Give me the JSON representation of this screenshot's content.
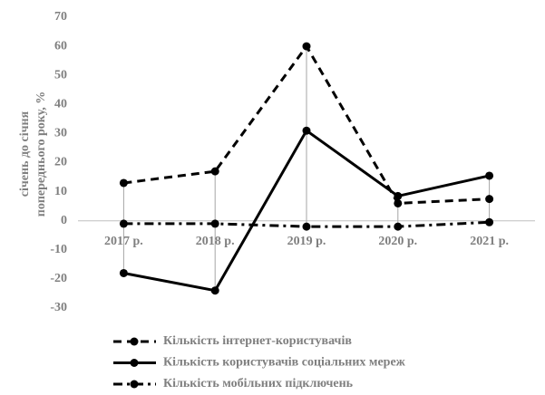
{
  "chart_data": {
    "type": "line",
    "ylabel": [
      "січень до січня",
      "попереднього року, %"
    ],
    "categories": [
      "2017 р.",
      "2018 р.",
      "2019 р.",
      "2020 р.",
      "2021 р."
    ],
    "series": [
      {
        "name": "Кількість інтернет-користувачів",
        "color": "#000000",
        "line_style": "dashed",
        "values": [
          13,
          17,
          60,
          6,
          7.5
        ]
      },
      {
        "name": "Кількість користувачів соціальних мереж",
        "color": "#000000",
        "line_style": "solid",
        "values": [
          -18,
          -24,
          31,
          8.5,
          15.5
        ]
      },
      {
        "name": "Кількість мобільних підключень",
        "color": "#000000",
        "line_style": "dashdot",
        "values": [
          -1,
          -1,
          -2,
          -2,
          -0.5
        ]
      }
    ],
    "ylim": [
      -30,
      70
    ],
    "yticks": [
      -30,
      -20,
      -10,
      0,
      10,
      20,
      30,
      40,
      50,
      60,
      70
    ],
    "high_low_lines": true,
    "grid": false
  }
}
